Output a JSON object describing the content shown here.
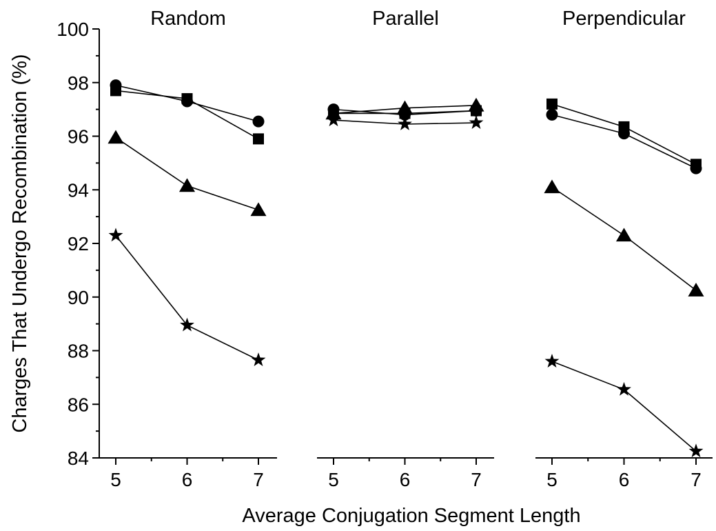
{
  "figure": {
    "y_axis_title": "Charges That Undergo Recombination (%)",
    "x_axis_title": "Average Conjugation Segment Length"
  },
  "chart_data": {
    "type": "line",
    "xlabel": "Average Conjugation Segment Length",
    "ylabel": "Charges That Undergo Recombination (%)",
    "ylim": [
      84,
      100
    ],
    "yticks": [
      84,
      86,
      88,
      90,
      92,
      94,
      96,
      98,
      100
    ],
    "xticks": [
      5,
      6,
      7
    ],
    "xlim": [
      4.98,
      7.02
    ],
    "grid": false,
    "legend": "none",
    "marker_shapes": [
      "circle",
      "square",
      "triangle",
      "star"
    ],
    "color": "#000000",
    "panels": [
      {
        "title": "Random",
        "series": [
          {
            "marker": "circle",
            "x": [
              5,
              6,
              7
            ],
            "y": [
              97.9,
              97.3,
              96.55
            ]
          },
          {
            "marker": "square",
            "x": [
              5,
              6,
              7
            ],
            "y": [
              97.7,
              97.4,
              95.9
            ]
          },
          {
            "marker": "triangle",
            "x": [
              5,
              6,
              7
            ],
            "y": [
              95.95,
              94.15,
              93.25
            ]
          },
          {
            "marker": "star",
            "x": [
              5,
              6,
              7
            ],
            "y": [
              92.3,
              88.95,
              87.65
            ]
          }
        ]
      },
      {
        "title": "Parallel",
        "series": [
          {
            "marker": "circle",
            "x": [
              5,
              6,
              7
            ],
            "y": [
              97.0,
              96.8,
              96.95
            ]
          },
          {
            "marker": "square",
            "x": [
              5,
              6,
              7
            ],
            "y": [
              96.85,
              96.85,
              96.95
            ]
          },
          {
            "marker": "triangle",
            "x": [
              5,
              6,
              7
            ],
            "y": [
              96.85,
              97.05,
              97.15
            ]
          },
          {
            "marker": "star",
            "x": [
              5,
              6,
              7
            ],
            "y": [
              96.6,
              96.45,
              96.5
            ]
          }
        ]
      },
      {
        "title": "Perpendicular",
        "series": [
          {
            "marker": "circle",
            "x": [
              5,
              6,
              7
            ],
            "y": [
              96.8,
              96.1,
              94.8
            ]
          },
          {
            "marker": "square",
            "x": [
              5,
              6,
              7
            ],
            "y": [
              97.2,
              96.35,
              94.95
            ]
          },
          {
            "marker": "triangle",
            "x": [
              5,
              6,
              7
            ],
            "y": [
              94.1,
              92.3,
              90.25
            ]
          },
          {
            "marker": "star",
            "x": [
              5,
              6,
              7
            ],
            "y": [
              87.6,
              86.55,
              84.25
            ]
          }
        ]
      }
    ]
  }
}
